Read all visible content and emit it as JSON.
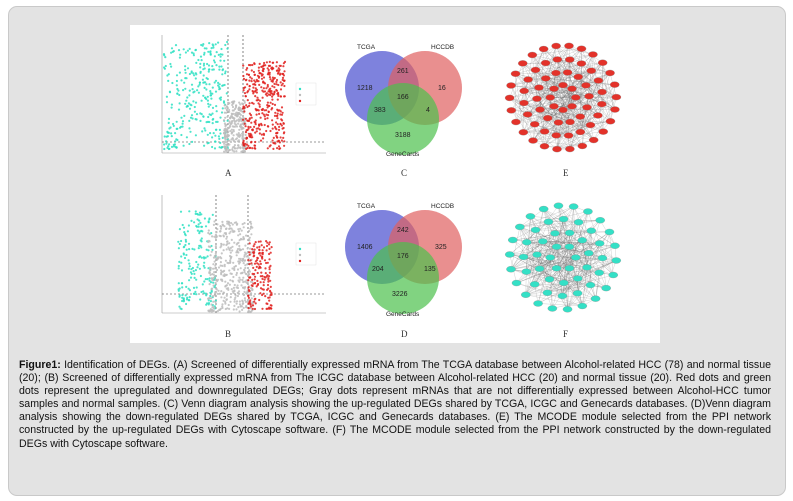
{
  "figure": {
    "panels": {
      "A": "A",
      "B": "B",
      "C": "C",
      "D": "D",
      "E": "E",
      "F": "F"
    },
    "venn_up": {
      "label_tcga": "TCGA",
      "label_hccdb": "HCCDB",
      "label_genecards": "GeneCards",
      "tcga_only": "1218",
      "hccdb_only": "16",
      "genecards_only": "3188",
      "tcga_hccdb": "261",
      "all_three": "166",
      "tcga_genecards": "383",
      "hccdb_genecards": "4"
    },
    "venn_down": {
      "label_tcga": "TCGA",
      "label_hccdb": "HCCDB",
      "label_genecards": "GeneCards",
      "tcga_only": "1406",
      "hccdb_only": "325",
      "genecards_only": "3226",
      "tcga_hccdb": "242",
      "all_three": "176",
      "tcga_genecards": "204",
      "hccdb_genecards": "135"
    },
    "colors": {
      "up": "#e0211e",
      "down": "#2fe0c3",
      "gray": "#bdbdbd",
      "venn_blue": "#5a5fd4",
      "venn_red": "#e06060",
      "venn_green": "#4cc04c",
      "network_up": "#e3322a",
      "network_down": "#34e0c6"
    }
  },
  "caption": {
    "label": "Figure1:",
    "text": " Identification of DEGs. (A) Screened of differentially expressed mRNA from The TCGA database between Alcohol-related HCC (78) and normal tissue (20); (B) Screened of differentially expressed mRNA from The ICGC database between Alcohol-related HCC (20) and normal tissue (20). Red dots and green dots represent the upregulated and downregulated DEGs; Gray dots represent mRNAs that are not differentially expressed between Alcohol-HCC tumor samples and normal samples. (C) Venn diagram analysis showing the up-regulated DEGs shared by TCGA, ICGC and Genecards databases. (D)Venn diagram analysis showing the down-regulated DEGs shared by TCGA, ICGC and Genecards databases. (E) The MCODE module selected from the PPI network constructed by the up-regulated DEGs with Cytoscape software. (F) The MCODE module selected from the PPI network constructed by the down-regulated DEGs with Cytoscape software."
  }
}
